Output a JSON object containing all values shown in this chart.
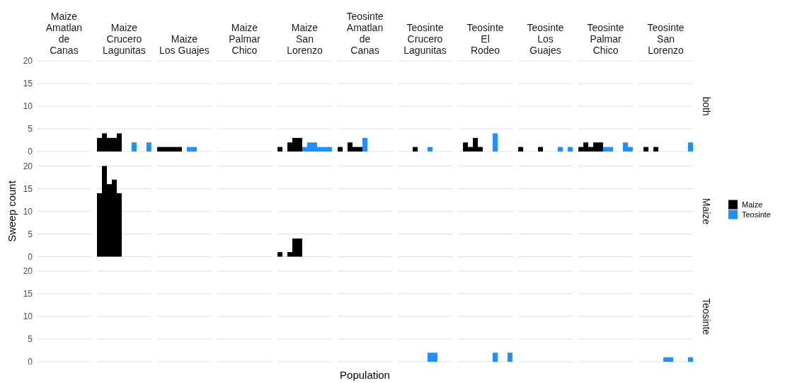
{
  "chart_data": [
    {
      "type": "bar",
      "annotations": [
        "both"
      ],
      "categories": [
        "Maize\nAmatlan\nde\nCanas",
        "Maize\nCrucero\nLagunitas",
        "Maize\nLos Guajes",
        "Maize\nPalmar\nChico",
        "Maize\nSan\nLorenzo",
        "Teosinte\nAmatlan\nde\nCanas",
        "Teosinte\nCrucero\nLagunitas",
        "Teosinte\nEl\nRodeo",
        "Teosinte\nLos\nGuajes",
        "Teosinte\nPalmar\nChico",
        "Teosinte\nSan\nLorenzo"
      ],
      "series": [
        {
          "color": "#000000",
          "values": [
            0,
            3,
            1,
            0,
            1,
            1,
            0,
            0,
            1,
            1,
            0
          ]
        },
        {
          "color": "#000000",
          "values": [
            0,
            4,
            1,
            0,
            0,
            0,
            0,
            2,
            0,
            2,
            1
          ]
        },
        {
          "color": "#000000",
          "values": [
            0,
            3,
            1,
            0,
            2,
            2,
            0,
            1,
            0,
            1,
            0
          ]
        },
        {
          "color": "#000000",
          "values": [
            0,
            3,
            1,
            0,
            3,
            1,
            1,
            3,
            0,
            2,
            1
          ]
        },
        {
          "color": "#000000",
          "values": [
            0,
            4,
            1,
            0,
            3,
            1,
            0,
            1,
            1,
            2,
            0
          ]
        },
        {
          "color": "#1e90ff",
          "values": [
            0,
            0,
            0,
            0,
            1,
            3,
            0,
            0,
            0,
            1,
            0
          ]
        },
        {
          "color": "#1e90ff",
          "values": [
            0,
            0,
            1,
            0,
            2,
            0,
            1,
            0,
            0,
            1,
            0
          ]
        },
        {
          "color": "#1e90ff",
          "values": [
            0,
            2,
            1,
            0,
            2,
            0,
            0,
            4,
            0,
            0,
            0
          ]
        },
        {
          "color": "#1e90ff",
          "values": [
            0,
            0,
            0,
            0,
            1,
            0,
            0,
            0,
            1,
            0,
            0
          ]
        },
        {
          "color": "#1e90ff",
          "values": [
            0,
            0,
            0,
            0,
            1,
            0,
            0,
            0,
            0,
            2,
            0
          ]
        },
        {
          "color": "#1e90ff",
          "values": [
            0,
            2,
            0,
            0,
            1,
            0,
            0,
            0,
            1,
            1,
            2
          ]
        }
      ],
      "ylim": [
        0,
        20
      ],
      "yticks": [
        0,
        5,
        10,
        15,
        20
      ],
      "grid": "y"
    },
    {
      "type": "bar",
      "annotations": [
        "Maize"
      ],
      "ylabel": "Sweep count",
      "legend": "right",
      "categories": [
        null,
        null,
        null,
        null,
        null,
        null,
        null,
        null,
        null,
        null,
        null
      ],
      "series": [
        {
          "name": "Maize",
          "color": "#000000",
          "values": [
            0,
            14,
            0,
            0,
            1,
            0,
            0,
            0,
            0,
            0,
            0
          ]
        },
        {
          "color": "#000000",
          "values": [
            0,
            20,
            0,
            0,
            0,
            0,
            0,
            0,
            0,
            0,
            0
          ]
        },
        {
          "color": "#000000",
          "values": [
            0,
            16,
            0,
            0,
            1,
            0,
            0,
            0,
            0,
            0,
            0
          ]
        },
        {
          "color": "#000000",
          "values": [
            0,
            17,
            0,
            0,
            4,
            0,
            0,
            0,
            0,
            0,
            0
          ]
        },
        {
          "color": "#000000",
          "values": [
            0,
            14,
            0,
            0,
            4,
            0,
            0,
            0,
            0,
            0,
            0
          ]
        },
        {
          "name": "Teosinte",
          "color": "#1e90ff",
          "values": [
            0,
            0,
            0,
            0,
            0,
            0,
            0,
            0,
            0,
            0,
            0
          ]
        },
        {
          "color": "#1e90ff",
          "values": [
            0,
            0,
            0,
            0,
            0,
            0,
            0,
            0,
            0,
            0,
            0
          ]
        },
        {
          "color": "#1e90ff",
          "values": [
            0,
            0,
            0,
            0,
            0,
            0,
            0,
            0,
            0,
            0,
            0
          ]
        },
        {
          "color": "#1e90ff",
          "values": [
            0,
            0,
            0,
            0,
            0,
            0,
            0,
            0,
            0,
            0,
            0
          ]
        },
        {
          "color": "#1e90ff",
          "values": [
            0,
            0,
            0,
            0,
            0,
            0,
            0,
            0,
            0,
            0,
            0
          ]
        },
        {
          "color": "#1e90ff",
          "values": [
            0,
            0,
            0,
            0,
            0,
            0,
            0,
            0,
            0,
            0,
            0
          ]
        }
      ],
      "ylim": [
        0,
        20
      ],
      "yticks": [
        0,
        5,
        10,
        15,
        20
      ],
      "grid": "y",
      "tick_labels": "y"
    },
    {
      "type": "bar",
      "annotations": [
        "Teosinte"
      ],
      "xlabel": "Population",
      "categories": [
        null,
        null,
        null,
        null,
        null,
        null,
        null,
        null,
        null,
        null,
        null
      ],
      "series": [
        {
          "color": "#000000",
          "values": [
            0,
            0,
            0,
            0,
            0,
            0,
            0,
            0,
            0,
            0,
            0
          ]
        },
        {
          "color": "#000000",
          "values": [
            0,
            0,
            0,
            0,
            0,
            0,
            0,
            0,
            0,
            0,
            0
          ]
        },
        {
          "color": "#000000",
          "values": [
            0,
            0,
            0,
            0,
            0,
            0,
            0,
            0,
            0,
            0,
            0
          ]
        },
        {
          "color": "#000000",
          "values": [
            0,
            0,
            0,
            0,
            0,
            0,
            0,
            0,
            0,
            0,
            0
          ]
        },
        {
          "color": "#000000",
          "values": [
            0,
            0,
            0,
            0,
            0,
            0,
            0,
            0,
            0,
            0,
            0
          ]
        },
        {
          "color": "#1e90ff",
          "values": [
            0,
            0,
            0,
            0,
            0,
            0,
            0,
            0,
            0,
            0,
            1
          ]
        },
        {
          "color": "#1e90ff",
          "values": [
            0,
            0,
            0,
            0,
            0,
            0,
            2,
            0,
            0,
            0,
            1
          ]
        },
        {
          "color": "#1e90ff",
          "values": [
            0,
            0,
            0,
            0,
            0,
            0,
            2,
            2,
            0,
            0,
            0
          ]
        },
        {
          "color": "#1e90ff",
          "values": [
            0,
            0,
            0,
            0,
            0,
            0,
            0,
            0,
            0,
            0,
            0
          ]
        },
        {
          "color": "#1e90ff",
          "values": [
            0,
            0,
            0,
            0,
            0,
            0,
            0,
            0,
            0,
            0,
            0
          ]
        },
        {
          "color": "#1e90ff",
          "values": [
            0,
            0,
            0,
            0,
            0,
            0,
            0,
            2,
            0,
            0,
            1
          ]
        }
      ],
      "ylim": [
        0,
        20
      ],
      "yticks": [
        0,
        5,
        10,
        15,
        20
      ],
      "grid": "y",
      "tick_labels": "y"
    }
  ]
}
